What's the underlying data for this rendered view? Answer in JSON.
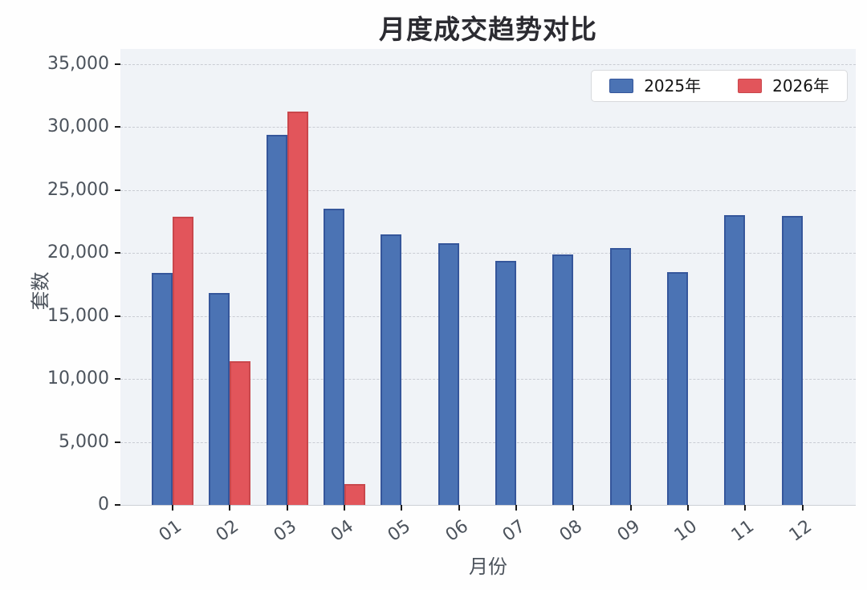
{
  "title": "月度成交趋势对比",
  "chart_data": {
    "type": "bar",
    "title": "月度成交趋势对比",
    "xlabel": "月份",
    "ylabel": "套数",
    "categories": [
      "01",
      "02",
      "03",
      "04",
      "05",
      "06",
      "07",
      "08",
      "09",
      "10",
      "11",
      "12"
    ],
    "series": [
      {
        "name": "2025年",
        "color": "#4b73b4",
        "edge_color": "#35569b",
        "values": [
          18400,
          16800,
          29400,
          23500,
          21450,
          20750,
          19400,
          19900,
          20400,
          18500,
          23000,
          22950
        ]
      },
      {
        "name": "2026年",
        "color": "#e2555b",
        "edge_color": "#c9474c",
        "values": [
          22900,
          11400,
          31200,
          1650,
          null,
          null,
          null,
          null,
          null,
          null,
          null,
          null
        ]
      }
    ],
    "yticks": [
      0,
      5000,
      10000,
      15000,
      20000,
      25000,
      30000,
      35000
    ],
    "ylim": [
      0,
      36200
    ],
    "grid": "horizontal-dashed",
    "legend_position": "top-right",
    "plot_background": "#f0f3f7",
    "grid_color": "#c9ccd3"
  }
}
